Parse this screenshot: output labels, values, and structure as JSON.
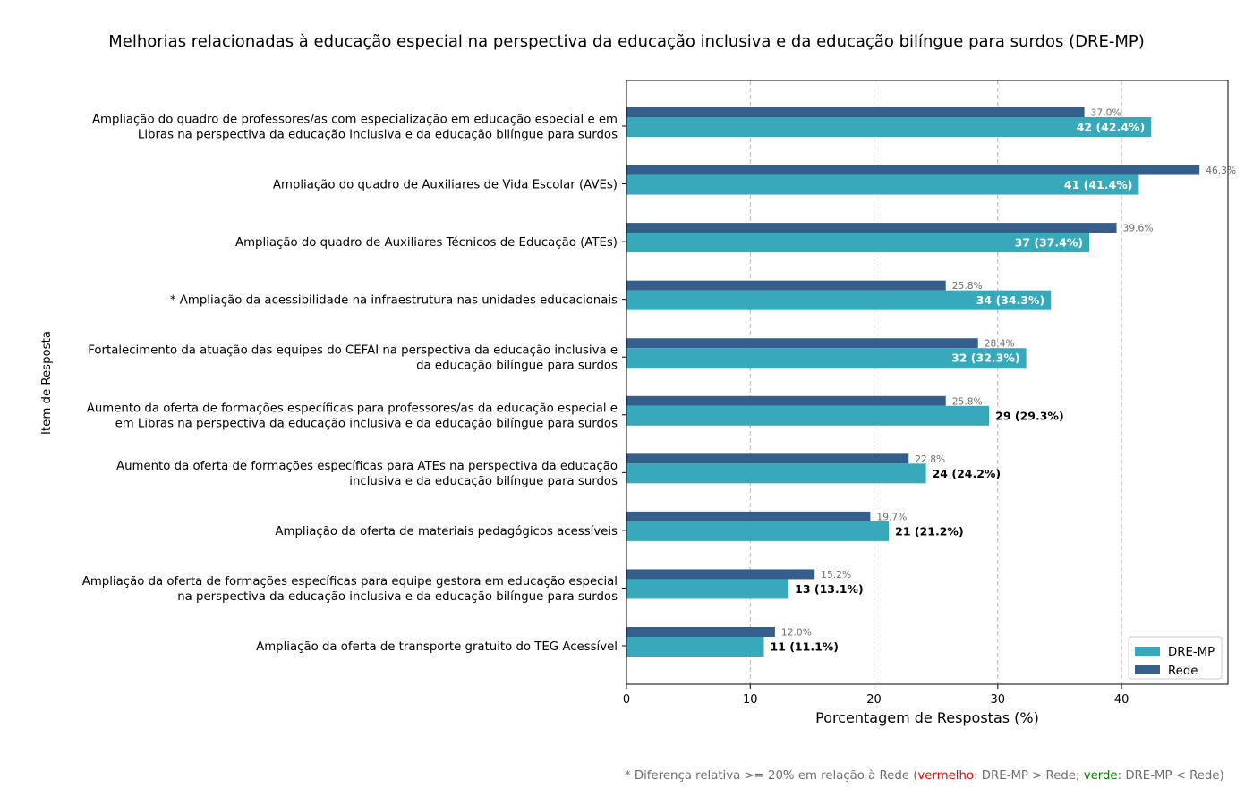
{
  "chart_data": {
    "type": "bar",
    "orientation": "horizontal",
    "title": "Melhorias relacionadas à educação especial na perspectiva da educação inclusiva e da educação bilíngue para surdos (DRE-MP)",
    "xlabel": "Porcentagem de Respostas (%)",
    "ylabel": "Item de Resposta",
    "xlim": [
      0,
      48.6
    ],
    "xticks": [
      "0",
      "10",
      "20",
      "30",
      "40"
    ],
    "grid": "x-dashed",
    "legend_position": "bottom-right",
    "categories": [
      {
        "lines": [
          "Ampliação do quadro de professores/as com especialização em educação especial e em",
          "Libras na perspectiva da educação inclusiva e da educação bilíngue para surdos"
        ],
        "highlight": ""
      },
      {
        "lines": [
          "Ampliação do quadro de Auxiliares de Vida Escolar (AVEs)"
        ],
        "highlight": ""
      },
      {
        "lines": [
          "Ampliação do quadro de Auxiliares Técnicos de Educação (ATEs)"
        ],
        "highlight": ""
      },
      {
        "lines": [
          "* Ampliação da acessibilidade na infraestrutura nas unidades educacionais"
        ],
        "highlight": "red"
      },
      {
        "lines": [
          "Fortalecimento da atuação das equipes do CEFAI na perspectiva da educação inclusiva e",
          "da educação bilíngue para surdos"
        ],
        "highlight": ""
      },
      {
        "lines": [
          "Aumento da oferta de formações específicas para professores/as da educação especial e",
          "em Libras na perspectiva da educação inclusiva e da educação bilíngue para surdos"
        ],
        "highlight": ""
      },
      {
        "lines": [
          "Aumento da oferta de formações específicas para ATEs na perspectiva da educação",
          "inclusiva e da educação bilíngue para surdos"
        ],
        "highlight": ""
      },
      {
        "lines": [
          "Ampliação da oferta de materiais pedagógicos acessíveis"
        ],
        "highlight": ""
      },
      {
        "lines": [
          "Ampliação da oferta de formações específicas para equipe gestora em educação especial",
          "na perspectiva da educação inclusiva e da educação bilíngue para surdos"
        ],
        "highlight": ""
      },
      {
        "lines": [
          "Ampliação da oferta de transporte gratuito do TEG Acessível"
        ],
        "highlight": ""
      }
    ],
    "series": [
      {
        "name": "DRE-MP",
        "color": "#37a9bb",
        "values": [
          42.4,
          41.4,
          37.4,
          34.3,
          32.3,
          29.3,
          24.2,
          21.2,
          13.1,
          11.1
        ],
        "labels": [
          "42 (42.4%)",
          "41 (41.4%)",
          "37 (37.4%)",
          "34 (34.3%)",
          "32 (32.3%)",
          "29 (29.3%)",
          "24 (24.2%)",
          "21 (21.2%)",
          "13 (13.1%)",
          "11 (11.1%)"
        ]
      },
      {
        "name": "Rede",
        "color": "#345e8c",
        "values": [
          37.0,
          46.3,
          39.6,
          25.8,
          28.4,
          25.8,
          22.8,
          19.7,
          15.2,
          12.0
        ],
        "labels": [
          "37.0%",
          "46.3%",
          "39.6%",
          "25.8%",
          "28.4%",
          "25.8%",
          "22.8%",
          "19.7%",
          "15.2%",
          "12.0%"
        ]
      }
    ]
  },
  "footnote": {
    "parts": [
      {
        "text": "* Diferença relativa >= 20% em relação à Rede (",
        "color": "#6e6e6e"
      },
      {
        "text": "vermelho",
        "color": "#ff0000"
      },
      {
        "text": ": DRE-MP > Rede; ",
        "color": "#6e6e6e"
      },
      {
        "text": "verde",
        "color": "#008000"
      },
      {
        "text": ": DRE-MP < Rede)",
        "color": "#6e6e6e"
      }
    ]
  }
}
